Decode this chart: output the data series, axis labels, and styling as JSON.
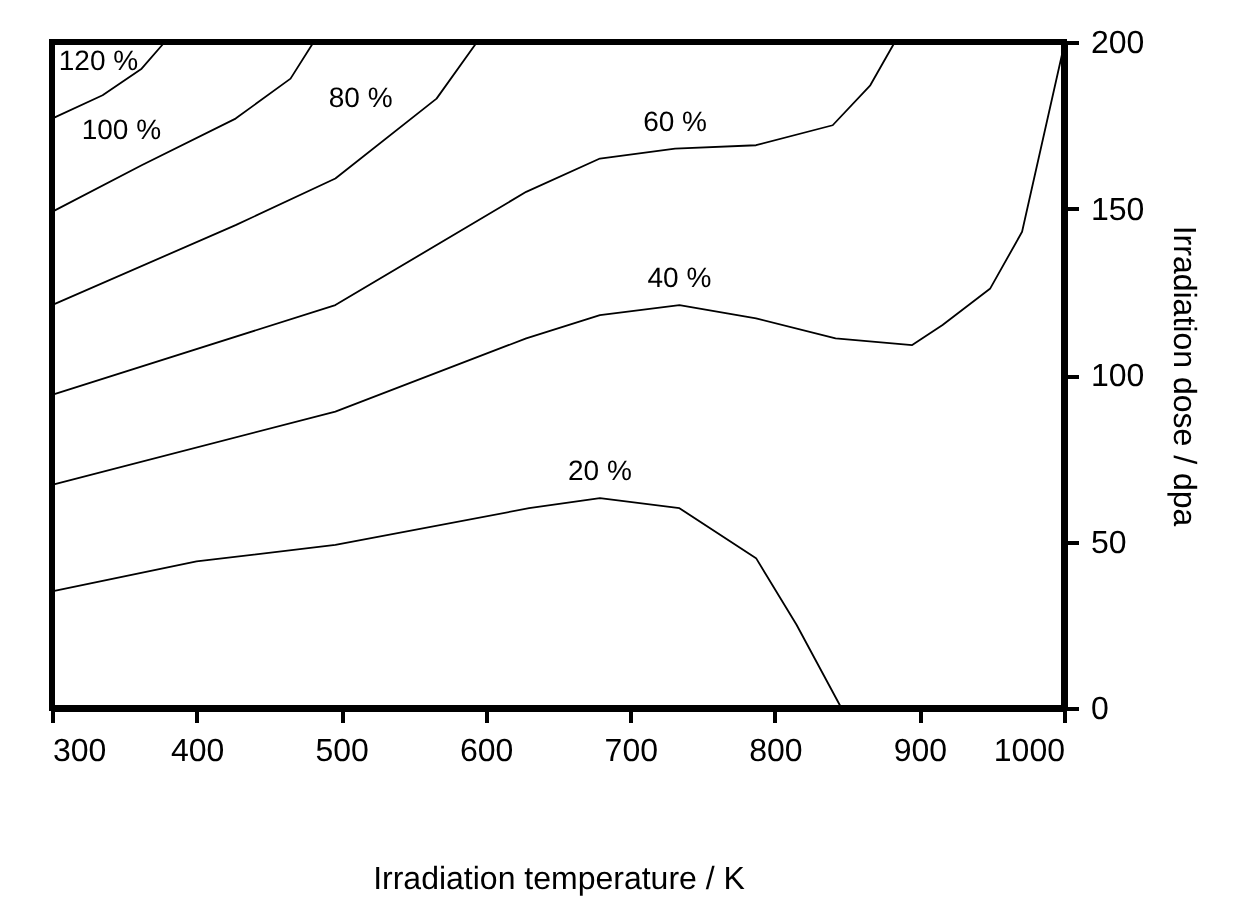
{
  "chart_data": {
    "type": "line",
    "xlabel": "Irradiation temperature / K",
    "ylabel": "Irradiation dose / dpa",
    "xlim": [
      300,
      1000
    ],
    "xticks": [
      300,
      400,
      500,
      600,
      700,
      800,
      900,
      1000
    ],
    "ylim": [
      0,
      200
    ],
    "yticks": [
      0,
      50,
      100,
      150,
      200
    ],
    "grid": false,
    "legend": false,
    "marker": "none",
    "line_style": "solid",
    "series": [
      {
        "name": "20 %",
        "color": "#000000",
        "x": [
          300,
          400,
          496,
          630,
          679,
          734,
          787,
          815,
          846
        ],
        "values": [
          35,
          44,
          49,
          60,
          63,
          60,
          45,
          25,
          0
        ]
      },
      {
        "name": "40 %",
        "color": "#000000",
        "x": [
          300,
          496,
          628,
          679,
          734,
          787,
          842,
          895,
          916,
          949,
          971,
          999
        ],
        "values": [
          67,
          89,
          111,
          118,
          121,
          117,
          111,
          109,
          115,
          126,
          143,
          197
        ]
      },
      {
        "name": "60 %",
        "color": "#000000",
        "x": [
          300,
          496,
          628,
          679,
          731,
          787,
          840,
          866,
          883
        ],
        "values": [
          94,
          121,
          155,
          165,
          168,
          169,
          175,
          187,
          200
        ]
      },
      {
        "name": "80 %",
        "color": "#000000",
        "x": [
          300,
          427,
          496,
          566,
          594
        ],
        "values": [
          121,
          145,
          159,
          183,
          200
        ]
      },
      {
        "name": "100 %",
        "color": "#000000",
        "x": [
          300,
          362,
          427,
          465,
          481
        ],
        "values": [
          149,
          163,
          177,
          189,
          200
        ]
      },
      {
        "name": "120 %",
        "color": "#000000",
        "x": [
          300,
          335,
          362,
          378
        ],
        "values": [
          177,
          184,
          192,
          200
        ]
      }
    ]
  }
}
